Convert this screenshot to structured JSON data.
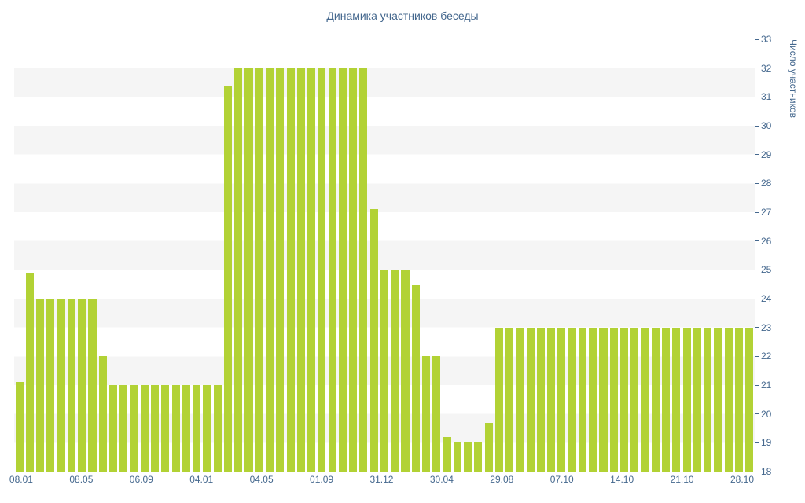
{
  "title": "Динамика участников беседы",
  "colors": {
    "bar": "#b2d235",
    "text": "#45688e",
    "axis": "#45688e",
    "stripe": "#f5f5f5"
  },
  "chart_data": {
    "type": "bar",
    "title": "Динамика участников беседы",
    "xlabel": "",
    "ylabel": "Число участников",
    "ylim": [
      18,
      33
    ],
    "y_ticks": [
      18,
      19,
      20,
      21,
      22,
      23,
      24,
      25,
      26,
      27,
      28,
      29,
      30,
      31,
      32,
      33
    ],
    "y_axis_position": "right",
    "legend_position": "none",
    "grid": "alternating-horizontal-stripes",
    "x_tick_labels": [
      "08.01",
      "08.05",
      "06.09",
      "04.01",
      "04.05",
      "01.09",
      "31.12",
      "30.04",
      "29.08",
      "07.10",
      "14.10",
      "21.10",
      "28.10"
    ],
    "values": [
      21.1,
      24.9,
      24,
      24,
      24,
      24,
      24,
      24,
      22,
      21,
      21,
      21,
      21,
      21,
      21,
      21,
      21,
      21,
      21,
      21,
      31.4,
      32,
      32,
      32,
      32,
      32,
      32,
      32,
      32,
      32,
      32,
      32,
      32,
      32,
      27.1,
      25,
      25,
      25,
      24.5,
      22,
      22,
      19.2,
      19,
      19,
      19,
      19.7,
      23,
      23,
      23,
      23,
      23,
      23,
      23,
      23,
      23,
      23,
      23,
      23,
      23,
      23,
      23,
      23,
      23,
      23,
      23,
      23,
      23,
      23,
      23,
      23,
      23
    ]
  }
}
